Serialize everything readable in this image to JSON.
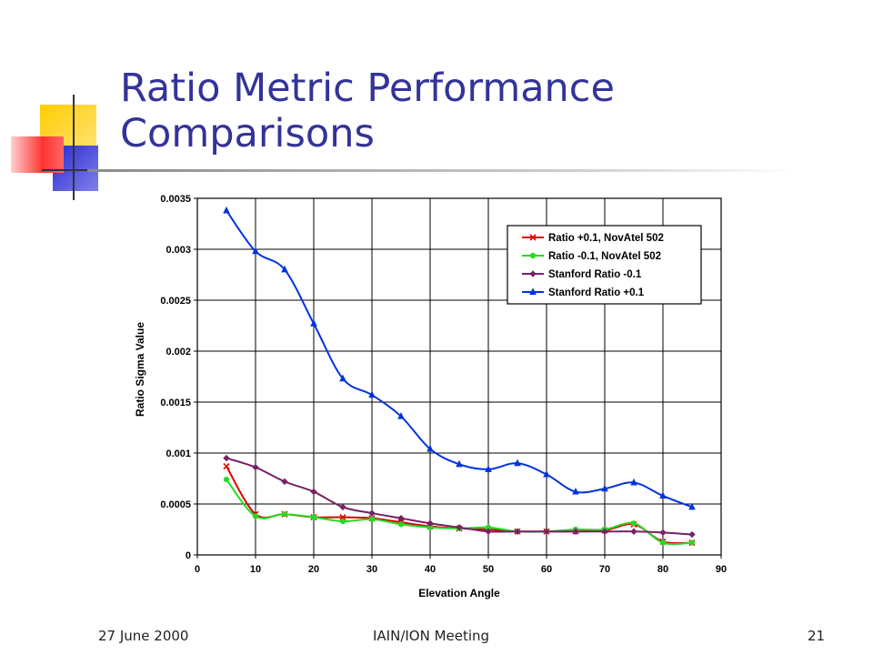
{
  "slide": {
    "title_line1": "Ratio Metric Performance",
    "title_line2": "Comparisons"
  },
  "footer": {
    "date": "27 June 2000",
    "event": "IAIN/ION Meeting",
    "page": "21"
  },
  "colors": {
    "title": "#333399",
    "deco_yellow": "#ffcc00",
    "deco_blue": "#3333cc",
    "deco_red": "#ff3333"
  },
  "chart_data": {
    "type": "line",
    "xlabel": "Elevation Angle",
    "ylabel": "Ratio Sigma Value",
    "xlim": [
      0,
      90
    ],
    "ylim": [
      0,
      0.0035
    ],
    "x_ticks": [
      "0",
      "10",
      "20",
      "30",
      "40",
      "50",
      "60",
      "70",
      "80",
      "90"
    ],
    "y_ticks": [
      "0",
      "0.0005",
      "0.001",
      "0.0015",
      "0.002",
      "0.0025",
      "0.003",
      "0.0035"
    ],
    "grid": true,
    "legend_position": "top-right",
    "x": [
      5,
      10,
      15,
      20,
      25,
      30,
      35,
      40,
      45,
      50,
      55,
      60,
      65,
      70,
      75,
      80,
      85
    ],
    "series": [
      {
        "name": "Ratio +0.1, NovAtel 502",
        "color": "#dd0000",
        "marker": "x",
        "values": [
          0.00087,
          0.0004,
          0.0004,
          0.00037,
          0.00037,
          0.00036,
          0.00032,
          0.00028,
          0.00026,
          0.00025,
          0.00023,
          0.00023,
          0.00023,
          0.00024,
          0.0003,
          0.00013,
          0.00012
        ]
      },
      {
        "name": "Ratio -0.1, NovAtel 502",
        "color": "#22dd22",
        "marker": "circle",
        "values": [
          0.00074,
          0.00038,
          0.0004,
          0.00037,
          0.00033,
          0.00035,
          0.0003,
          0.00027,
          0.00026,
          0.00027,
          0.00023,
          0.00023,
          0.00025,
          0.00025,
          0.00031,
          0.00012,
          0.00012
        ]
      },
      {
        "name": "Stanford Ratio -0.1",
        "color": "#772266",
        "marker": "diamond",
        "values": [
          0.00095,
          0.00086,
          0.00072,
          0.00062,
          0.00047,
          0.00041,
          0.00036,
          0.00031,
          0.00027,
          0.00023,
          0.00023,
          0.00023,
          0.00023,
          0.00023,
          0.00023,
          0.00022,
          0.0002
        ]
      },
      {
        "name": "Stanford Ratio +0.1",
        "color": "#0033dd",
        "marker": "triangle",
        "values": [
          0.00338,
          0.00298,
          0.0028,
          0.00227,
          0.00173,
          0.00157,
          0.00136,
          0.00104,
          0.00089,
          0.00084,
          0.0009,
          0.00079,
          0.00062,
          0.00065,
          0.00071,
          0.00058,
          0.00047
        ]
      }
    ]
  }
}
